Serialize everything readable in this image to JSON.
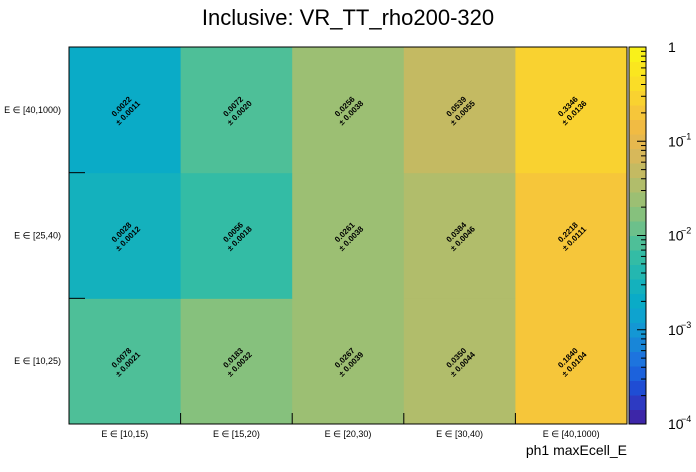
{
  "chart_data": {
    "type": "heatmap",
    "title": "Inclusive: VR_TT_rho200-320",
    "xlabel": "ph1 maxEcell_E",
    "ylabel": "",
    "x_categories": [
      "E ∈ [10,15)",
      "E ∈ [15,20)",
      "E ∈ [20,30)",
      "E ∈ [30,40)",
      "E ∈ [40,1000)"
    ],
    "y_categories": [
      "E ∈ [10,25)",
      "E ∈ [25,40)",
      "E ∈ [40,1000)"
    ],
    "values": [
      [
        0.0078,
        0.0183,
        0.0267,
        0.035,
        0.184
      ],
      [
        0.0028,
        0.0056,
        0.0261,
        0.0384,
        0.2218
      ],
      [
        0.0022,
        0.0072,
        0.0256,
        0.0539,
        0.3346
      ]
    ],
    "errors": [
      [
        0.0021,
        0.0032,
        0.0039,
        0.0044,
        0.0104
      ],
      [
        0.0012,
        0.0018,
        0.0038,
        0.0046,
        0.0111
      ],
      [
        0.0011,
        0.002,
        0.0038,
        0.0055,
        0.0136
      ]
    ],
    "value_labels": [
      [
        "0.0078",
        "0.0183",
        "0.0267",
        "0.0350",
        "0.1840"
      ],
      [
        "0.0028",
        "0.0056",
        "0.0261",
        "0.0384",
        "0.2218"
      ],
      [
        "0.0022",
        "0.0072",
        "0.0256",
        "0.0539",
        "0.3346"
      ]
    ],
    "error_labels": [
      [
        "± 0.0021",
        "± 0.0032",
        "± 0.0039",
        "± 0.0044",
        "± 0.0104"
      ],
      [
        "± 0.0012",
        "± 0.0018",
        "± 0.0038",
        "± 0.0046",
        "± 0.0111"
      ],
      [
        "± 0.0011",
        "± 0.0020",
        "± 0.0038",
        "± 0.0055",
        "± 0.0136"
      ]
    ],
    "zscale": "log",
    "zlim": [
      0.0001,
      1
    ],
    "colorbar_labels": [
      {
        "value": 1,
        "base": "1",
        "exp": ""
      },
      {
        "value": 0.1,
        "base": "10",
        "exp": "−1"
      },
      {
        "value": 0.01,
        "base": "10",
        "exp": "−2"
      },
      {
        "value": 0.001,
        "base": "10",
        "exp": "−3"
      },
      {
        "value": 0.0001,
        "base": "10",
        "exp": "−4"
      }
    ],
    "palette": [
      "#3d26a8",
      "#2d3ac2",
      "#1f4dd4",
      "#1c62dc",
      "#1d74de",
      "#1886d8",
      "#1497d4",
      "#0ea3cf",
      "#0aabc7",
      "#14b1bd",
      "#24b7b0",
      "#33bca5",
      "#4ebf98",
      "#6cc08b",
      "#86c17d",
      "#9cbf73",
      "#b1bd6b",
      "#c4ba62",
      "#d7b85a",
      "#e6b84e",
      "#f1bb43",
      "#f6c63a",
      "#f9d230",
      "#fadd27",
      "#fae61f",
      "#f9f11a"
    ],
    "grid": false,
    "legend": "colorbar-right"
  }
}
